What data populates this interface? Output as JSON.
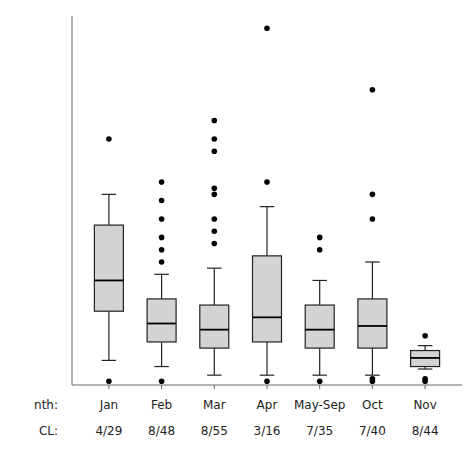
{
  "chart_data": {
    "type": "box",
    "categories": [
      "Jan",
      "Feb",
      "Mar",
      "Apr",
      "May-Sep",
      "Oct",
      "Nov"
    ],
    "cl_labels": [
      "4/29",
      "8/48",
      "8/55",
      "3/16",
      "7/35",
      "7/40",
      "8/44"
    ],
    "row_labels": [
      "nth:",
      "CL:"
    ],
    "q1": [
      6.0,
      3.5,
      3.0,
      3.5,
      3.0,
      3.0,
      1.5
    ],
    "median": [
      8.5,
      5.0,
      4.5,
      5.5,
      4.5,
      4.8,
      2.2
    ],
    "q3": [
      13.0,
      7.0,
      6.5,
      10.5,
      6.5,
      7.0,
      2.8
    ],
    "whislo": [
      2.0,
      1.5,
      0.8,
      0.8,
      0.8,
      0.8,
      1.3
    ],
    "whishi": [
      15.5,
      9.0,
      9.5,
      14.5,
      8.5,
      10.0,
      3.2
    ],
    "fliers": [
      [
        0.3,
        20.0
      ],
      [
        0.3,
        10.0,
        11.0,
        12.0,
        13.5,
        15.0,
        16.5
      ],
      [
        11.5,
        12.5,
        13.5,
        15.5,
        16.0,
        19.0,
        20.0,
        21.5
      ],
      [
        0.3,
        16.5,
        29.0
      ],
      [
        0.3,
        11.0,
        12.0
      ],
      [
        0.3,
        0.5,
        13.5,
        15.5,
        24.0
      ],
      [
        0.3,
        0.5,
        4.0
      ]
    ],
    "ylim": [
      0,
      30
    ],
    "yticks": [],
    "grid": false,
    "tick_labels": "x",
    "color": "#d3d3d3",
    "marker": "circle"
  }
}
